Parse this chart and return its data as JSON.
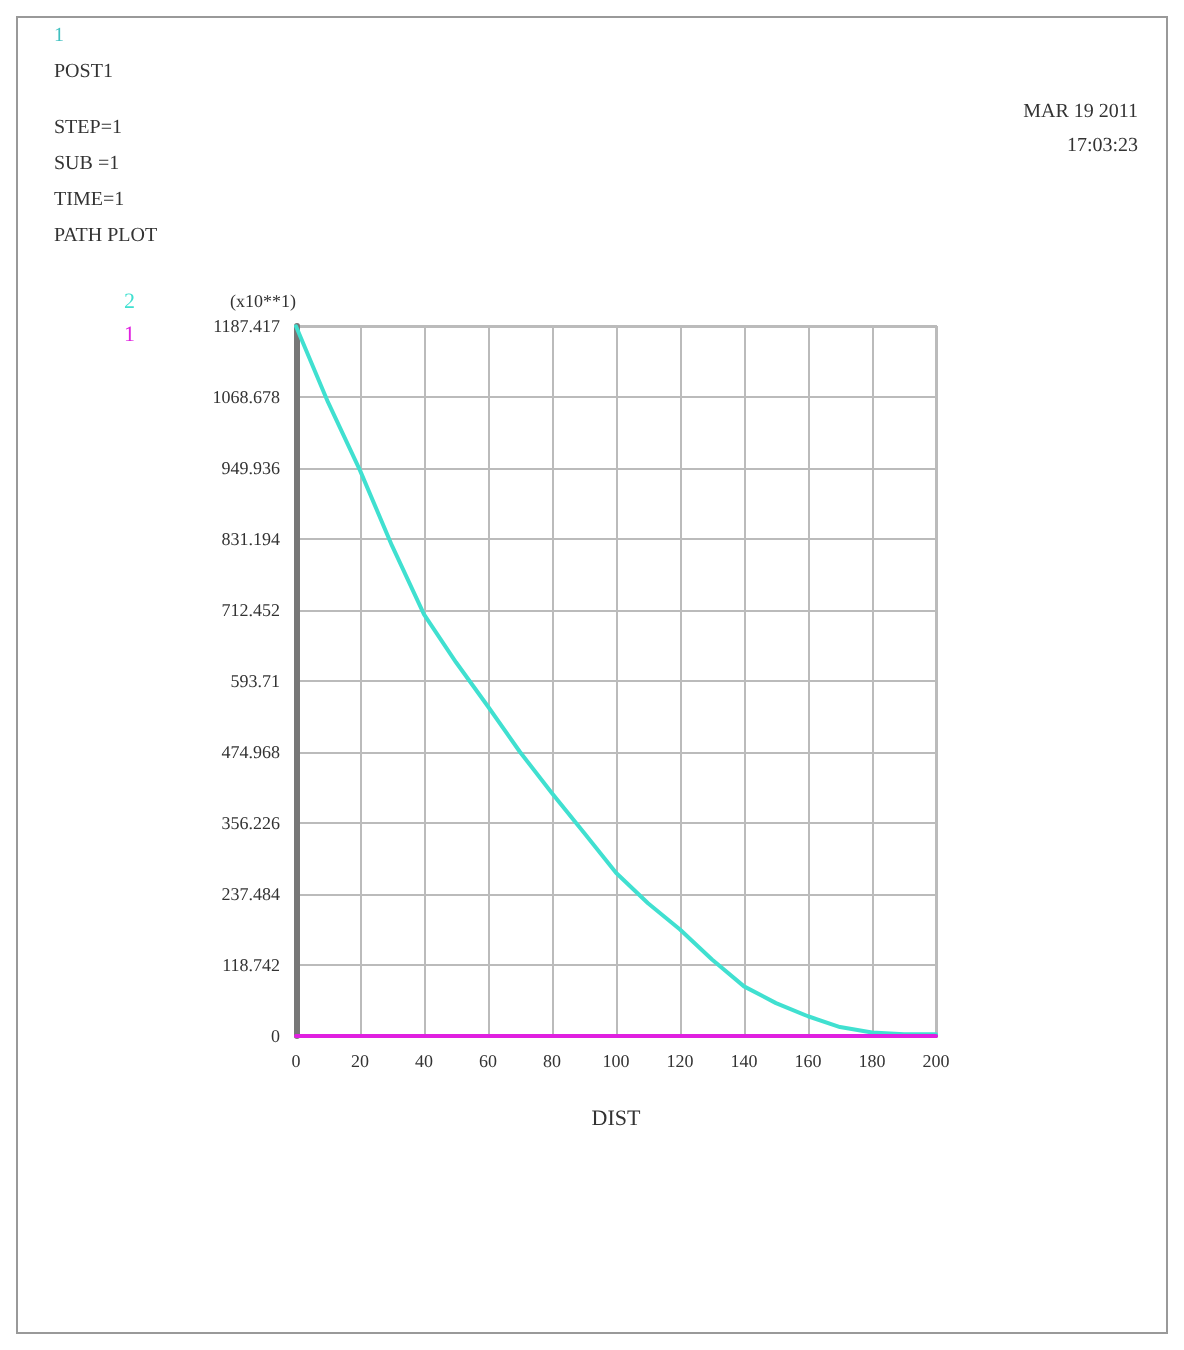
{
  "chart_data": {
    "type": "line",
    "xlabel": "DIST",
    "ylabel": "(x10**1)",
    "annotations": [
      "1",
      "POST1",
      "STEP=1",
      "SUB =1",
      "TIME=1",
      "PATH PLOT",
      "MAR 19 2011",
      "17:03:23"
    ],
    "series": [
      {
        "name": "2",
        "color": "#40e0d0",
        "x": [
          0,
          10,
          20,
          30,
          40,
          50,
          60,
          70,
          80,
          90,
          100,
          110,
          120,
          130,
          140,
          150,
          160,
          170,
          180,
          190,
          200
        ],
        "values": [
          1187,
          1060,
          946,
          820,
          705,
          625,
          551,
          475,
          406,
          340,
          273,
          222,
          178,
          128,
          83,
          55,
          33,
          15,
          6,
          3,
          3
        ]
      },
      {
        "name": "1",
        "color": "#e020e0",
        "x": [
          0,
          200
        ],
        "values": [
          0,
          0
        ]
      }
    ],
    "xlim": [
      0,
      200
    ],
    "xticks": [
      0,
      20,
      40,
      60,
      80,
      100,
      120,
      140,
      160,
      180,
      200
    ],
    "ylim": [
      0,
      1187.417
    ],
    "yticks": [
      0,
      118.742,
      237.484,
      356.226,
      474.968,
      593.71,
      712.452,
      831.194,
      949.936,
      1068.678,
      1187.417
    ],
    "grid": true,
    "legend": "left",
    "marker": "none",
    "line_style": "solid"
  }
}
